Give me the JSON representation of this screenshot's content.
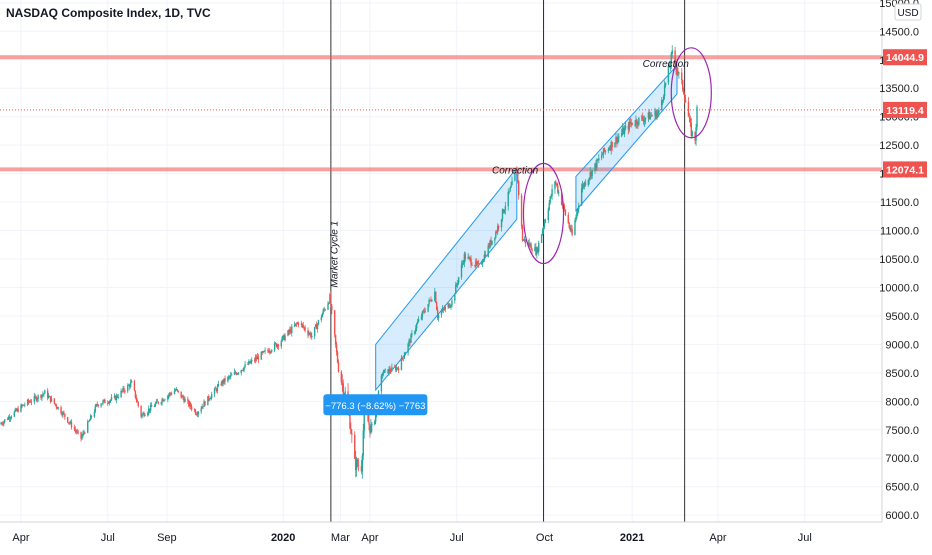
{
  "chart_data": {
    "type": "candlestick",
    "title": "NASDAQ Composite Index, 1D, TVC",
    "currency": "USD",
    "y_axis_ticks": [
      6000,
      6500,
      7000,
      7500,
      8000,
      8500,
      9000,
      9500,
      10000,
      10500,
      11000,
      11500,
      12000,
      12500,
      13000,
      13500,
      14000,
      14500,
      15000
    ],
    "y_axis_tick_labels": [
      "6000.0",
      "6500.0",
      "7000.0",
      "7500.0",
      "8000.0",
      "8500.0",
      "9000.0",
      "9500.0",
      "10000.0",
      "10500.0",
      "11000.0",
      "11500.0",
      "12000.0",
      "12500.0",
      "13000.0",
      "13500.0",
      "14000.0",
      "14500.0",
      "15000.0"
    ],
    "ylim": [
      5880,
      15050
    ],
    "x_axis_tick_labels": [
      "Apr",
      "Jul",
      "Sep",
      "2020",
      "Mar",
      "Apr",
      "Jul",
      "Oct",
      "2021",
      "Apr",
      "Jul"
    ],
    "x_axis_ticks": [
      "2019-04-01",
      "2019-07-01",
      "2019-09-01",
      "2020-01-01",
      "2020-03-01",
      "2020-04-01",
      "2020-07-01",
      "2020-10-01",
      "2021-01-01",
      "2021-04-01",
      "2021-07-01"
    ],
    "xlim": [
      "2019-03-10",
      "2021-09-20"
    ],
    "colors": {
      "up": "#26a69a",
      "down": "#ef5350",
      "level": "#ef5350",
      "channel": "#2196f3",
      "circle": "#9c27b0",
      "measure": "#2196f3"
    },
    "horizontal_levels": [
      {
        "value": 14044.9,
        "label": "14044.9"
      },
      {
        "value": 12074.1,
        "label": "12074.1"
      }
    ],
    "last_price": {
      "value": 13119.4,
      "label": "13119.4"
    },
    "vertical_lines": [
      "2020-02-20",
      "2020-09-30",
      "2021-02-25"
    ],
    "channels": [
      {
        "start": "2020-04-07",
        "end": "2020-09-02",
        "upper": [
          9000,
          12100
        ],
        "lower": [
          8200,
          11200
        ]
      },
      {
        "start": "2020-11-03",
        "end": "2021-02-17",
        "upper": [
          11950,
          13900
        ],
        "lower": [
          11350,
          13400
        ]
      }
    ],
    "circles": [
      {
        "center": [
          "2020-09-30",
          11300
        ],
        "rx_days": 21,
        "ry": 880
      },
      {
        "center": [
          "2021-03-04",
          13420
        ],
        "rx_days": 21,
        "ry": 790
      }
    ],
    "annotations": [
      {
        "text": "Market Cycle 1",
        "date": "2020-02-27",
        "value": 10000,
        "rotate": -90
      },
      {
        "text": "Correction",
        "date": "2020-08-07",
        "value": 12000,
        "rotate": 0
      },
      {
        "text": "Correction",
        "date": "2021-01-12",
        "value": 13870,
        "rotate": 0
      }
    ],
    "measure_label": {
      "text": "−776.3 (−8.62%) −7763",
      "date": "2020-03-02",
      "value": 7930
    },
    "anchor_points": [
      [
        "2019-03-10",
        7600
      ],
      [
        "2019-04-05",
        7950
      ],
      [
        "2019-04-26",
        8150
      ],
      [
        "2019-05-12",
        7850
      ],
      [
        "2019-06-03",
        7350
      ],
      [
        "2019-06-20",
        7950
      ],
      [
        "2019-07-08",
        8050
      ],
      [
        "2019-07-26",
        8320
      ],
      [
        "2019-08-05",
        7750
      ],
      [
        "2019-08-20",
        7950
      ],
      [
        "2019-09-10",
        8200
      ],
      [
        "2019-10-02",
        7800
      ],
      [
        "2019-10-28",
        8320
      ],
      [
        "2019-11-25",
        8650
      ],
      [
        "2019-12-27",
        9020
      ],
      [
        "2020-01-17",
        9390
      ],
      [
        "2020-01-31",
        9150
      ],
      [
        "2020-02-19",
        9820
      ],
      [
        "2020-02-28",
        8560
      ],
      [
        "2020-03-09",
        7950
      ],
      [
        "2020-03-16",
        6900
      ],
      [
        "2020-03-23",
        6860
      ],
      [
        "2020-03-26",
        7800
      ],
      [
        "2020-04-03",
        7480
      ],
      [
        "2020-04-14",
        8500
      ],
      [
        "2020-05-01",
        8600
      ],
      [
        "2020-05-20",
        9350
      ],
      [
        "2020-06-08",
        9920
      ],
      [
        "2020-06-11",
        9500
      ],
      [
        "2020-06-26",
        9750
      ],
      [
        "2020-07-09",
        10550
      ],
      [
        "2020-07-24",
        10360
      ],
      [
        "2020-08-12",
        11010
      ],
      [
        "2020-09-02",
        12056
      ],
      [
        "2020-09-08",
        10850
      ],
      [
        "2020-09-23",
        10630
      ],
      [
        "2020-10-12",
        11880
      ],
      [
        "2020-10-30",
        10910
      ],
      [
        "2020-11-09",
        11750
      ],
      [
        "2020-12-01",
        12350
      ],
      [
        "2020-12-31",
        12890
      ],
      [
        "2021-01-29",
        13070
      ],
      [
        "2021-02-12",
        14100
      ],
      [
        "2021-02-24",
        13460
      ],
      [
        "2021-03-04",
        12720
      ],
      [
        "2021-03-08",
        12610
      ],
      [
        "2021-03-10",
        13119
      ]
    ]
  }
}
